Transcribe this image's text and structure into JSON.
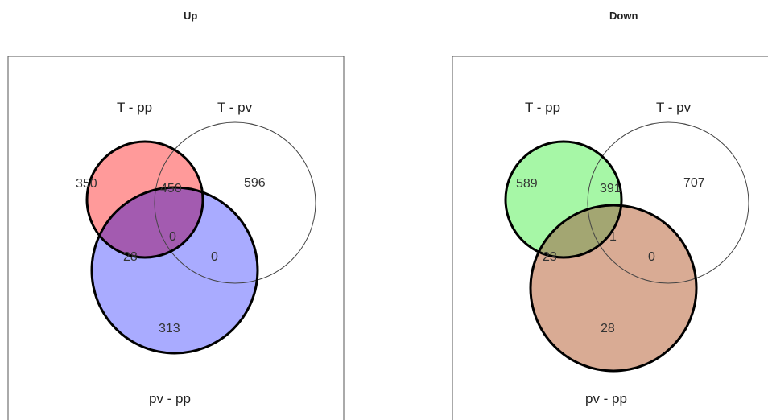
{
  "panels": [
    {
      "title": "Up",
      "sets": [
        {
          "label": "T - pp",
          "fill": "#ff9a9a",
          "stroke_bold": true
        },
        {
          "label": "T - pv",
          "fill": "#ffffff",
          "stroke_bold": false
        },
        {
          "label": "pv - pp",
          "fill": "#a9abff",
          "stroke_bold": true
        }
      ],
      "counts": {
        "only_t_pp": "350",
        "t_pp_and_t_pv": "450",
        "only_t_pv": "596",
        "t_pp_and_pv_pp": "28",
        "all_three": "0",
        "t_pv_and_pv_pp": "0",
        "only_pv_pp": "313"
      },
      "overlap_fill": "#a35bb0"
    },
    {
      "title": "Down",
      "sets": [
        {
          "label": "T - pp",
          "fill": "#a6f7a6",
          "stroke_bold": true
        },
        {
          "label": "T - pv",
          "fill": "#ffffff",
          "stroke_bold": false
        },
        {
          "label": "pv - pp",
          "fill": "#d9ab94",
          "stroke_bold": true
        }
      ],
      "counts": {
        "only_t_pp": "589",
        "t_pp_and_t_pv": "391",
        "only_t_pv": "707",
        "t_pp_and_pv_pp": "23",
        "all_three": "1",
        "t_pv_and_pv_pp": "0",
        "only_pv_pp": "28"
      },
      "overlap_fill": "#a3a672"
    }
  ]
}
